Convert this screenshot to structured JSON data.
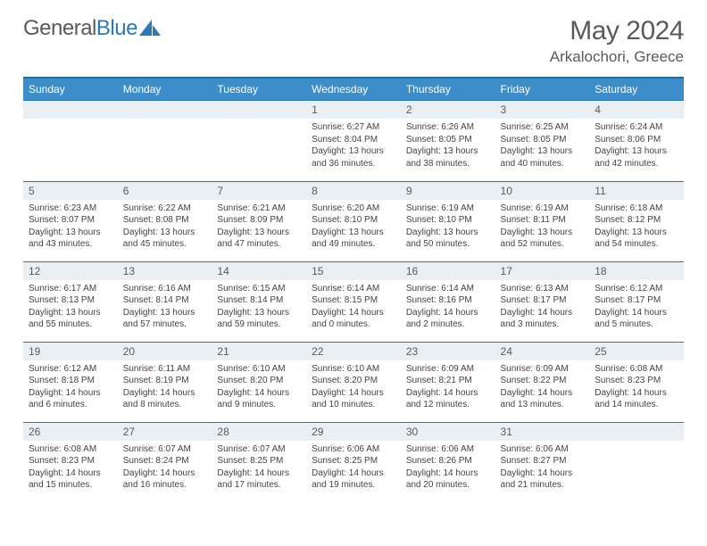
{
  "logo": {
    "text_gray": "General",
    "text_blue": "Blue"
  },
  "title": "May 2024",
  "location": "Arkalochori, Greece",
  "colors": {
    "header_bg": "#3d8dcb",
    "header_border": "#2a6ca0",
    "daynum_bg": "#e9eff3",
    "cell_border": "#2a7ab9",
    "text_gray": "#5a5a5a",
    "brand_blue": "#2a7ab9"
  },
  "weekdays": [
    "Sunday",
    "Monday",
    "Tuesday",
    "Wednesday",
    "Thursday",
    "Friday",
    "Saturday"
  ],
  "weeks": [
    [
      {
        "day": "",
        "sunrise": "",
        "sunset": "",
        "daylight": ""
      },
      {
        "day": "",
        "sunrise": "",
        "sunset": "",
        "daylight": ""
      },
      {
        "day": "",
        "sunrise": "",
        "sunset": "",
        "daylight": ""
      },
      {
        "day": "1",
        "sunrise": "Sunrise: 6:27 AM",
        "sunset": "Sunset: 8:04 PM",
        "daylight": "Daylight: 13 hours and 36 minutes."
      },
      {
        "day": "2",
        "sunrise": "Sunrise: 6:26 AM",
        "sunset": "Sunset: 8:05 PM",
        "daylight": "Daylight: 13 hours and 38 minutes."
      },
      {
        "day": "3",
        "sunrise": "Sunrise: 6:25 AM",
        "sunset": "Sunset: 8:05 PM",
        "daylight": "Daylight: 13 hours and 40 minutes."
      },
      {
        "day": "4",
        "sunrise": "Sunrise: 6:24 AM",
        "sunset": "Sunset: 8:06 PM",
        "daylight": "Daylight: 13 hours and 42 minutes."
      }
    ],
    [
      {
        "day": "5",
        "sunrise": "Sunrise: 6:23 AM",
        "sunset": "Sunset: 8:07 PM",
        "daylight": "Daylight: 13 hours and 43 minutes."
      },
      {
        "day": "6",
        "sunrise": "Sunrise: 6:22 AM",
        "sunset": "Sunset: 8:08 PM",
        "daylight": "Daylight: 13 hours and 45 minutes."
      },
      {
        "day": "7",
        "sunrise": "Sunrise: 6:21 AM",
        "sunset": "Sunset: 8:09 PM",
        "daylight": "Daylight: 13 hours and 47 minutes."
      },
      {
        "day": "8",
        "sunrise": "Sunrise: 6:20 AM",
        "sunset": "Sunset: 8:10 PM",
        "daylight": "Daylight: 13 hours and 49 minutes."
      },
      {
        "day": "9",
        "sunrise": "Sunrise: 6:19 AM",
        "sunset": "Sunset: 8:10 PM",
        "daylight": "Daylight: 13 hours and 50 minutes."
      },
      {
        "day": "10",
        "sunrise": "Sunrise: 6:19 AM",
        "sunset": "Sunset: 8:11 PM",
        "daylight": "Daylight: 13 hours and 52 minutes."
      },
      {
        "day": "11",
        "sunrise": "Sunrise: 6:18 AM",
        "sunset": "Sunset: 8:12 PM",
        "daylight": "Daylight: 13 hours and 54 minutes."
      }
    ],
    [
      {
        "day": "12",
        "sunrise": "Sunrise: 6:17 AM",
        "sunset": "Sunset: 8:13 PM",
        "daylight": "Daylight: 13 hours and 55 minutes."
      },
      {
        "day": "13",
        "sunrise": "Sunrise: 6:16 AM",
        "sunset": "Sunset: 8:14 PM",
        "daylight": "Daylight: 13 hours and 57 minutes."
      },
      {
        "day": "14",
        "sunrise": "Sunrise: 6:15 AM",
        "sunset": "Sunset: 8:14 PM",
        "daylight": "Daylight: 13 hours and 59 minutes."
      },
      {
        "day": "15",
        "sunrise": "Sunrise: 6:14 AM",
        "sunset": "Sunset: 8:15 PM",
        "daylight": "Daylight: 14 hours and 0 minutes."
      },
      {
        "day": "16",
        "sunrise": "Sunrise: 6:14 AM",
        "sunset": "Sunset: 8:16 PM",
        "daylight": "Daylight: 14 hours and 2 minutes."
      },
      {
        "day": "17",
        "sunrise": "Sunrise: 6:13 AM",
        "sunset": "Sunset: 8:17 PM",
        "daylight": "Daylight: 14 hours and 3 minutes."
      },
      {
        "day": "18",
        "sunrise": "Sunrise: 6:12 AM",
        "sunset": "Sunset: 8:17 PM",
        "daylight": "Daylight: 14 hours and 5 minutes."
      }
    ],
    [
      {
        "day": "19",
        "sunrise": "Sunrise: 6:12 AM",
        "sunset": "Sunset: 8:18 PM",
        "daylight": "Daylight: 14 hours and 6 minutes."
      },
      {
        "day": "20",
        "sunrise": "Sunrise: 6:11 AM",
        "sunset": "Sunset: 8:19 PM",
        "daylight": "Daylight: 14 hours and 8 minutes."
      },
      {
        "day": "21",
        "sunrise": "Sunrise: 6:10 AM",
        "sunset": "Sunset: 8:20 PM",
        "daylight": "Daylight: 14 hours and 9 minutes."
      },
      {
        "day": "22",
        "sunrise": "Sunrise: 6:10 AM",
        "sunset": "Sunset: 8:20 PM",
        "daylight": "Daylight: 14 hours and 10 minutes."
      },
      {
        "day": "23",
        "sunrise": "Sunrise: 6:09 AM",
        "sunset": "Sunset: 8:21 PM",
        "daylight": "Daylight: 14 hours and 12 minutes."
      },
      {
        "day": "24",
        "sunrise": "Sunrise: 6:09 AM",
        "sunset": "Sunset: 8:22 PM",
        "daylight": "Daylight: 14 hours and 13 minutes."
      },
      {
        "day": "25",
        "sunrise": "Sunrise: 6:08 AM",
        "sunset": "Sunset: 8:23 PM",
        "daylight": "Daylight: 14 hours and 14 minutes."
      }
    ],
    [
      {
        "day": "26",
        "sunrise": "Sunrise: 6:08 AM",
        "sunset": "Sunset: 8:23 PM",
        "daylight": "Daylight: 14 hours and 15 minutes."
      },
      {
        "day": "27",
        "sunrise": "Sunrise: 6:07 AM",
        "sunset": "Sunset: 8:24 PM",
        "daylight": "Daylight: 14 hours and 16 minutes."
      },
      {
        "day": "28",
        "sunrise": "Sunrise: 6:07 AM",
        "sunset": "Sunset: 8:25 PM",
        "daylight": "Daylight: 14 hours and 17 minutes."
      },
      {
        "day": "29",
        "sunrise": "Sunrise: 6:06 AM",
        "sunset": "Sunset: 8:25 PM",
        "daylight": "Daylight: 14 hours and 19 minutes."
      },
      {
        "day": "30",
        "sunrise": "Sunrise: 6:06 AM",
        "sunset": "Sunset: 8:26 PM",
        "daylight": "Daylight: 14 hours and 20 minutes."
      },
      {
        "day": "31",
        "sunrise": "Sunrise: 6:06 AM",
        "sunset": "Sunset: 8:27 PM",
        "daylight": "Daylight: 14 hours and 21 minutes."
      },
      {
        "day": "",
        "sunrise": "",
        "sunset": "",
        "daylight": ""
      }
    ]
  ]
}
